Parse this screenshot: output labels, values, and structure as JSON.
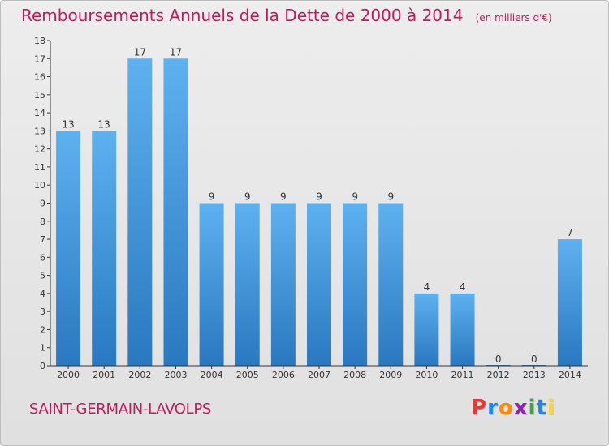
{
  "header": {
    "title": "Remboursements Annuels de la Dette de 2000 à 2014",
    "subtitle": "(en milliers d'€)"
  },
  "footer": {
    "commune": "SAINT-GERMAIN-LAVOLPS",
    "brand": "Proxiti"
  },
  "colors": {
    "bar_top": "#5eb1ef",
    "bar_bottom": "#2a78c0",
    "title": "#c2185b",
    "brand_letters": [
      "#e53935",
      "#1e88e5",
      "#fb8c00",
      "#8e24aa",
      "#43a047",
      "#1e88e5",
      "#fdd835"
    ]
  },
  "chart_data": {
    "type": "bar",
    "title": "Remboursements Annuels de la Dette de 2000 à 2014",
    "categories": [
      "2000",
      "2001",
      "2002",
      "2003",
      "2004",
      "2005",
      "2006",
      "2007",
      "2008",
      "2009",
      "2010",
      "2011",
      "2012",
      "2013",
      "2014"
    ],
    "values": [
      13,
      13,
      17,
      17,
      9,
      9,
      9,
      9,
      9,
      9,
      4,
      4,
      0,
      0,
      7
    ],
    "data_labels": [
      "13",
      "13",
      "17",
      "17",
      "9",
      "9",
      "9",
      "9",
      "9",
      "9",
      "4",
      "4",
      "0",
      "0",
      "7"
    ],
    "yticks": [
      "0",
      "1",
      "2",
      "3",
      "4",
      "5",
      "6",
      "7",
      "8",
      "9",
      "10",
      "11",
      "12",
      "13",
      "14",
      "15",
      "16",
      "17",
      "18"
    ],
    "ylim": [
      0,
      18
    ],
    "grid": false,
    "legend": "none"
  }
}
